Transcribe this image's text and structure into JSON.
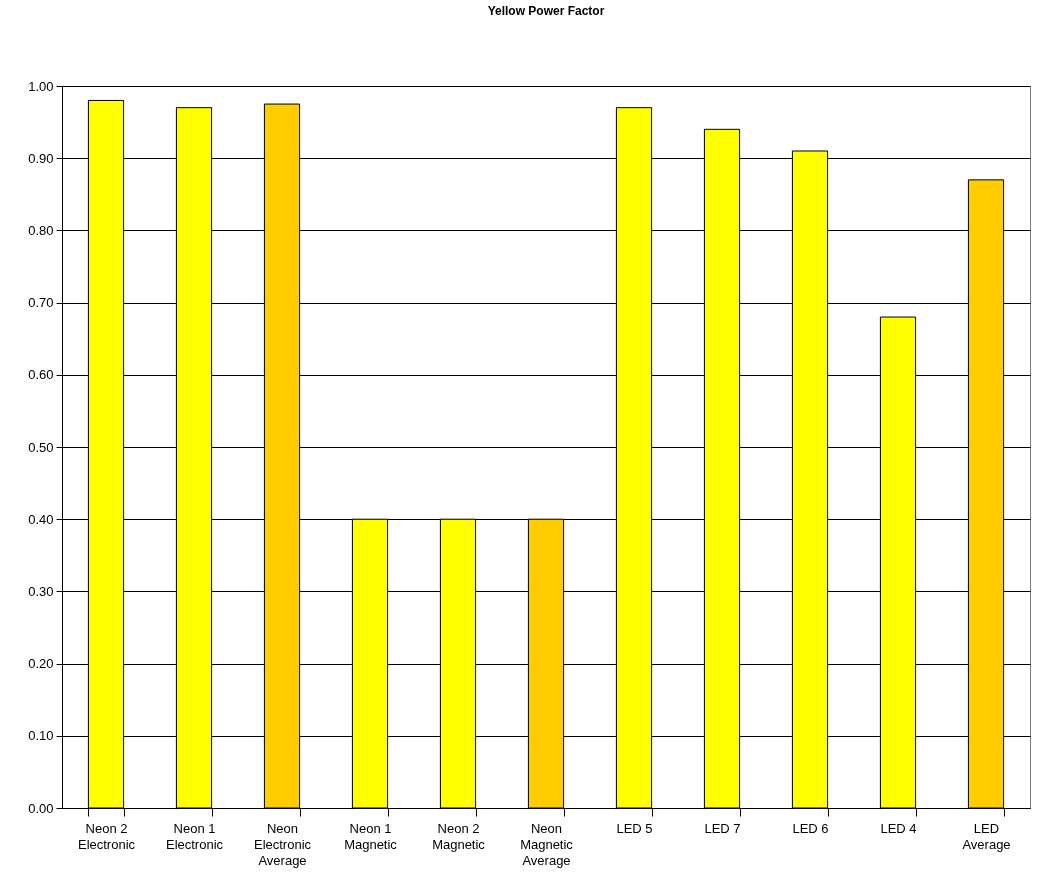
{
  "chart_data": {
    "type": "bar",
    "title": "Yellow Power Factor",
    "categories": [
      "Neon 2 Electronic",
      "Neon 1 Electronic",
      "Neon Electronic Average",
      "Neon 1 Magnetic",
      "Neon 2 Magnetic",
      "Neon Magnetic Average",
      "LED 5",
      "LED 7",
      "LED 6",
      "LED 4",
      "LED Average"
    ],
    "values": [
      0.98,
      0.97,
      0.975,
      0.4,
      0.4,
      0.4,
      0.97,
      0.94,
      0.91,
      0.68,
      0.87
    ],
    "colors": [
      "#ffff00",
      "#ffff00",
      "#ffcc00",
      "#ffff00",
      "#ffff00",
      "#ffcc00",
      "#ffff00",
      "#ffff00",
      "#ffff00",
      "#ffff00",
      "#ffcc00"
    ],
    "ylim": [
      0,
      1
    ],
    "yticks": [
      {
        "value": 0,
        "label": "0.00"
      },
      {
        "value": 0.1,
        "label": "0.10"
      },
      {
        "value": 0.2,
        "label": "0.20"
      },
      {
        "value": 0.3,
        "label": "0.30"
      },
      {
        "value": 0.4,
        "label": "0.40"
      },
      {
        "value": 0.5,
        "label": "0.50"
      },
      {
        "value": 0.6,
        "label": "0.60"
      },
      {
        "value": 0.7,
        "label": "0.70"
      },
      {
        "value": 0.8,
        "label": "0.80"
      },
      {
        "value": 0.9,
        "label": "0.90"
      },
      {
        "value": 1,
        "label": "1.00"
      }
    ],
    "grid": "y"
  }
}
